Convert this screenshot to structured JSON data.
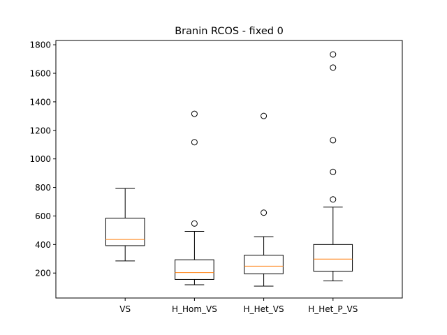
{
  "chart_data": {
    "type": "box",
    "title": "Branin RCOS - fixed 0",
    "xlabel": "",
    "ylabel": "",
    "ylim": [
      25,
      1830
    ],
    "yticks": [
      200,
      400,
      600,
      800,
      1000,
      1200,
      1400,
      1600,
      1800
    ],
    "grid": false,
    "categories": [
      "VS",
      "H_Hom_VS",
      "H_Het_VS",
      "H_Het_P_VS"
    ],
    "boxes": [
      {
        "whislo": 285,
        "q1": 392,
        "med": 435,
        "q3": 585,
        "whishi": 793,
        "fliers": []
      },
      {
        "whislo": 118,
        "q1": 155,
        "med": 203,
        "q3": 293,
        "whishi": 492,
        "fliers": [
          547,
          1117,
          1316
        ]
      },
      {
        "whislo": 108,
        "q1": 195,
        "med": 248,
        "q3": 325,
        "whishi": 455,
        "fliers": [
          623,
          1301
        ]
      },
      {
        "whislo": 145,
        "q1": 213,
        "med": 298,
        "q3": 400,
        "whishi": 662,
        "fliers": [
          716,
          909,
          1131,
          1640,
          1732
        ]
      }
    ],
    "colors": {
      "box": "#000000",
      "median": "#ff7f0e",
      "flier": "#000000"
    }
  }
}
